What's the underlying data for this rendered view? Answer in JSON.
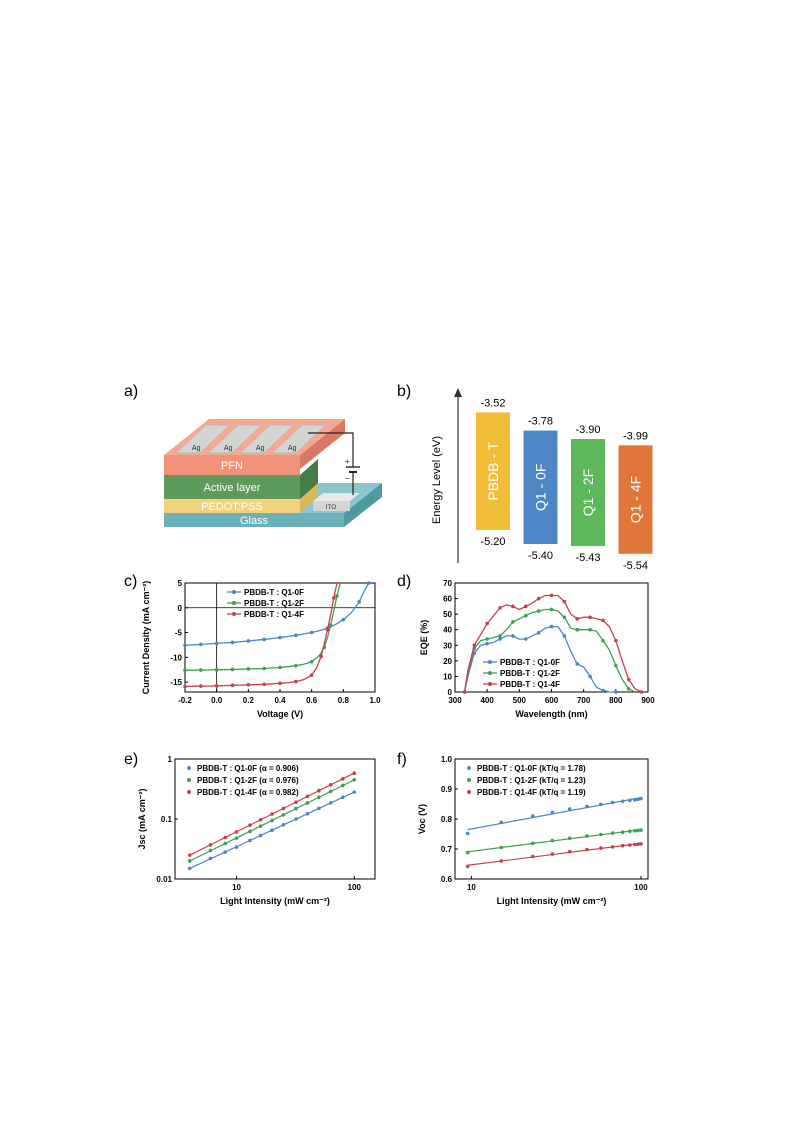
{
  "figure": {
    "panel_labels": [
      "a)",
      "b)",
      "c)",
      "d)",
      "e)",
      "f)"
    ]
  },
  "device": {
    "layers": [
      "PFN",
      "Active layer",
      "PEDOT:PSS",
      "Glass"
    ],
    "electrode_labels": [
      "Ag",
      "Ag",
      "Ag",
      "Ag"
    ],
    "ito_label": "ITO",
    "plus": "+",
    "minus": "−",
    "colors": {
      "pfn": "#F0937A",
      "active": "#5E9A5C",
      "pedot": "#F2D27A",
      "glass": "#6BB2B8",
      "ag": "#C8C8C8"
    }
  },
  "chart_data": [
    {
      "id": "b",
      "type": "energy-level",
      "ylabel": "Energy Level (eV)",
      "materials": [
        {
          "name": "PBDB - T",
          "lumo": -3.52,
          "homo": -5.2,
          "lumo_label": "-3.52",
          "homo_label": "-5.20",
          "color": "#F2BE3A"
        },
        {
          "name": "Q1 - 0F",
          "lumo": -3.78,
          "homo": -5.4,
          "lumo_label": "-3.78",
          "homo_label": "-5.40",
          "color": "#4F86C6"
        },
        {
          "name": "Q1 - 2F",
          "lumo": -3.9,
          "homo": -5.43,
          "lumo_label": "-3.90",
          "homo_label": "-5.43",
          "color": "#5DB85C"
        },
        {
          "name": "Q1 - 4F",
          "lumo": -3.99,
          "homo": -5.54,
          "lumo_label": "-3.99",
          "homo_label": "-5.54",
          "color": "#E0763A"
        }
      ]
    },
    {
      "id": "c",
      "type": "line",
      "xlabel": "Voltage (V)",
      "ylabel": "Current Density (mA cm⁻²)",
      "xlim": [
        -0.2,
        1.0
      ],
      "ylim": [
        -17,
        5
      ],
      "xticks": [
        -0.2,
        0.0,
        0.2,
        0.4,
        0.6,
        0.8,
        1.0
      ],
      "xtick_labels": [
        "-0.2",
        "0.0",
        "0.2",
        "0.4",
        "0.6",
        "0.8",
        "1.0"
      ],
      "yticks": [
        -15,
        -10,
        -5,
        0,
        5
      ],
      "ytick_labels": [
        "-15",
        "-10",
        "-5",
        "0",
        "5"
      ],
      "legend_position": "top-left",
      "series": [
        {
          "name": "PBDB-T : Q1-0F",
          "color": "#4A86C8",
          "x": [
            -0.2,
            -0.15,
            -0.1,
            -0.05,
            0.0,
            0.05,
            0.1,
            0.15,
            0.2,
            0.25,
            0.3,
            0.35,
            0.4,
            0.45,
            0.5,
            0.55,
            0.6,
            0.65,
            0.7,
            0.75,
            0.8,
            0.85,
            0.9,
            0.93,
            0.96
          ],
          "y": [
            -7.6,
            -7.5,
            -7.4,
            -7.3,
            -7.2,
            -7.1,
            -7.0,
            -6.85,
            -6.7,
            -6.55,
            -6.4,
            -6.2,
            -6.0,
            -5.8,
            -5.55,
            -5.3,
            -5.0,
            -4.6,
            -4.1,
            -3.4,
            -2.4,
            -1.0,
            1.2,
            3.2,
            5.0
          ]
        },
        {
          "name": "PBDB-T : Q1-2F",
          "color": "#3E9E52",
          "x": [
            -0.2,
            -0.15,
            -0.1,
            -0.05,
            0.0,
            0.05,
            0.1,
            0.15,
            0.2,
            0.25,
            0.3,
            0.35,
            0.4,
            0.45,
            0.5,
            0.55,
            0.6,
            0.65,
            0.68,
            0.7,
            0.72,
            0.74,
            0.76,
            0.78
          ],
          "y": [
            -12.6,
            -12.6,
            -12.55,
            -12.55,
            -12.5,
            -12.5,
            -12.45,
            -12.4,
            -12.35,
            -12.3,
            -12.25,
            -12.15,
            -12.05,
            -11.9,
            -11.7,
            -11.4,
            -10.9,
            -9.6,
            -8.0,
            -6.0,
            -3.5,
            -0.6,
            2.4,
            5.0
          ]
        },
        {
          "name": "PBDB-T : Q1-4F",
          "color": "#C8404F",
          "x": [
            -0.2,
            -0.15,
            -0.1,
            -0.05,
            0.0,
            0.05,
            0.1,
            0.15,
            0.2,
            0.25,
            0.3,
            0.35,
            0.4,
            0.45,
            0.5,
            0.55,
            0.6,
            0.63,
            0.66,
            0.68,
            0.7,
            0.72,
            0.74,
            0.76
          ],
          "y": [
            -15.9,
            -15.85,
            -15.8,
            -15.8,
            -15.75,
            -15.7,
            -15.65,
            -15.6,
            -15.55,
            -15.5,
            -15.45,
            -15.35,
            -15.25,
            -15.1,
            -14.9,
            -14.5,
            -13.6,
            -12.2,
            -9.8,
            -7.2,
            -4.4,
            -1.4,
            2.0,
            5.0
          ]
        }
      ]
    },
    {
      "id": "d",
      "type": "line",
      "xlabel": "Wavelength (nm)",
      "ylabel": "EQE (%)",
      "xlim": [
        300,
        900
      ],
      "ylim": [
        0,
        70
      ],
      "xticks": [
        300,
        400,
        500,
        600,
        700,
        800,
        900
      ],
      "xtick_labels": [
        "300",
        "400",
        "500",
        "600",
        "700",
        "800",
        "900"
      ],
      "yticks": [
        0,
        10,
        20,
        30,
        40,
        50,
        60,
        70
      ],
      "ytick_labels": [
        "0",
        "10",
        "20",
        "30",
        "40",
        "50",
        "60",
        "70"
      ],
      "legend_position": "bottom-center",
      "series": [
        {
          "name": "PBDB-T : Q1-0F",
          "color": "#4A86C8",
          "x": [
            330,
            340,
            360,
            380,
            400,
            420,
            440,
            460,
            480,
            500,
            520,
            540,
            560,
            580,
            600,
            620,
            640,
            660,
            680,
            700,
            720,
            740,
            760,
            780,
            800
          ],
          "y": [
            0,
            10,
            25,
            30,
            31,
            32,
            34,
            36,
            36,
            34,
            34,
            36,
            38,
            41,
            42,
            42,
            36,
            26,
            18,
            16,
            10,
            3,
            1,
            0,
            0
          ]
        },
        {
          "name": "PBDB-T : Q1-2F",
          "color": "#3E9E52",
          "x": [
            330,
            340,
            360,
            380,
            400,
            420,
            440,
            460,
            480,
            500,
            520,
            540,
            560,
            580,
            600,
            620,
            640,
            660,
            680,
            700,
            720,
            740,
            760,
            780,
            800,
            820,
            840,
            860
          ],
          "y": [
            0,
            12,
            28,
            33,
            34,
            35,
            36,
            40,
            45,
            47,
            49,
            51,
            52,
            53,
            53,
            52,
            48,
            41,
            40,
            40,
            40,
            39,
            33,
            27,
            17,
            8,
            2,
            0
          ]
        },
        {
          "name": "PBDB-T : Q1-4F",
          "color": "#C8404F",
          "x": [
            330,
            340,
            360,
            380,
            400,
            420,
            440,
            460,
            480,
            500,
            520,
            540,
            560,
            580,
            600,
            620,
            640,
            660,
            680,
            700,
            720,
            740,
            760,
            780,
            800,
            820,
            840,
            860,
            880
          ],
          "y": [
            0,
            14,
            30,
            37,
            44,
            49,
            54,
            56,
            55,
            53,
            55,
            57,
            60,
            62,
            62,
            62,
            58,
            50,
            47,
            48,
            48,
            47,
            46,
            42,
            33,
            20,
            8,
            2,
            0
          ]
        }
      ]
    },
    {
      "id": "e",
      "type": "scatter",
      "xscale": "log",
      "yscale": "log",
      "xlabel": "Light Intensity (mW cm⁻²)",
      "ylabel": "Jsc (mA cm⁻²)",
      "xlim": [
        3,
        150
      ],
      "ylim": [
        0.01,
        1
      ],
      "xticks": [
        10,
        100
      ],
      "xtick_labels": [
        "10",
        "100"
      ],
      "yticks": [
        0.01,
        0.1,
        1
      ],
      "ytick_labels": [
        "0.01",
        "0.1",
        "1"
      ],
      "legend_position": "top-left",
      "series": [
        {
          "name": "PBDB-T : Q1-0F",
          "alpha_label": "α = 0.906",
          "color": "#4A86C8",
          "x": [
            4,
            6,
            8,
            10,
            13,
            16,
            20,
            25,
            32,
            40,
            50,
            63,
            80,
            100
          ],
          "y": [
            0.015,
            0.022,
            0.028,
            0.034,
            0.044,
            0.053,
            0.065,
            0.08,
            0.1,
            0.122,
            0.15,
            0.185,
            0.23,
            0.28
          ]
        },
        {
          "name": "PBDB-T : Q1-2F",
          "alpha_label": "α = 0.976",
          "color": "#3E9E52",
          "x": [
            4,
            6,
            8,
            10,
            13,
            16,
            20,
            25,
            32,
            40,
            50,
            63,
            80,
            100
          ],
          "y": [
            0.02,
            0.03,
            0.039,
            0.048,
            0.062,
            0.076,
            0.094,
            0.117,
            0.149,
            0.185,
            0.23,
            0.288,
            0.362,
            0.45
          ]
        },
        {
          "name": "PBDB-T : Q1-4F",
          "alpha_label": "α = 0.982",
          "color": "#C8404F",
          "x": [
            4,
            6,
            8,
            10,
            13,
            16,
            20,
            25,
            32,
            40,
            50,
            63,
            80,
            100
          ],
          "y": [
            0.025,
            0.037,
            0.049,
            0.061,
            0.079,
            0.097,
            0.121,
            0.15,
            0.191,
            0.238,
            0.296,
            0.372,
            0.468,
            0.58
          ]
        }
      ]
    },
    {
      "id": "f",
      "type": "scatter",
      "xscale": "log",
      "xlabel": "Light Intensity (mW cm⁻²)",
      "ylabel": "Voc (V)",
      "xlim": [
        8,
        110
      ],
      "ylim": [
        0.6,
        1.0
      ],
      "xticks": [
        10,
        100
      ],
      "xtick_labels": [
        "10",
        "100"
      ],
      "yticks": [
        0.6,
        0.7,
        0.8,
        0.9,
        1.0
      ],
      "ytick_labels": [
        "0.6",
        "0.7",
        "0.8",
        "0.9",
        "1.0"
      ],
      "legend_position": "top-left",
      "series": [
        {
          "name": "PBDB-T : Q1-0F",
          "kTq_label": "kT/q = 1.78",
          "color": "#4A86C8",
          "x": [
            9.5,
            15,
            23,
            30,
            38,
            48,
            58,
            68,
            78,
            86,
            92,
            96,
            100
          ],
          "y": [
            0.752,
            0.789,
            0.81,
            0.822,
            0.833,
            0.842,
            0.849,
            0.855,
            0.859,
            0.862,
            0.864,
            0.866,
            0.868
          ]
        },
        {
          "name": "PBDB-T : Q1-2F",
          "kTq_label": "kT/q = 1.23",
          "color": "#3E9E52",
          "x": [
            9.5,
            15,
            23,
            30,
            38,
            48,
            58,
            68,
            78,
            86,
            92,
            96,
            100
          ],
          "y": [
            0.688,
            0.705,
            0.719,
            0.728,
            0.736,
            0.743,
            0.748,
            0.753,
            0.756,
            0.759,
            0.761,
            0.762,
            0.763
          ]
        },
        {
          "name": "PBDB-T : Q1-4F",
          "kTq_label": "kT/q = 1.19",
          "color": "#C8404F",
          "x": [
            9.5,
            15,
            23,
            30,
            38,
            48,
            58,
            68,
            78,
            86,
            92,
            96,
            100
          ],
          "y": [
            0.642,
            0.66,
            0.675,
            0.683,
            0.691,
            0.698,
            0.703,
            0.707,
            0.711,
            0.713,
            0.715,
            0.716,
            0.717
          ]
        }
      ]
    }
  ]
}
